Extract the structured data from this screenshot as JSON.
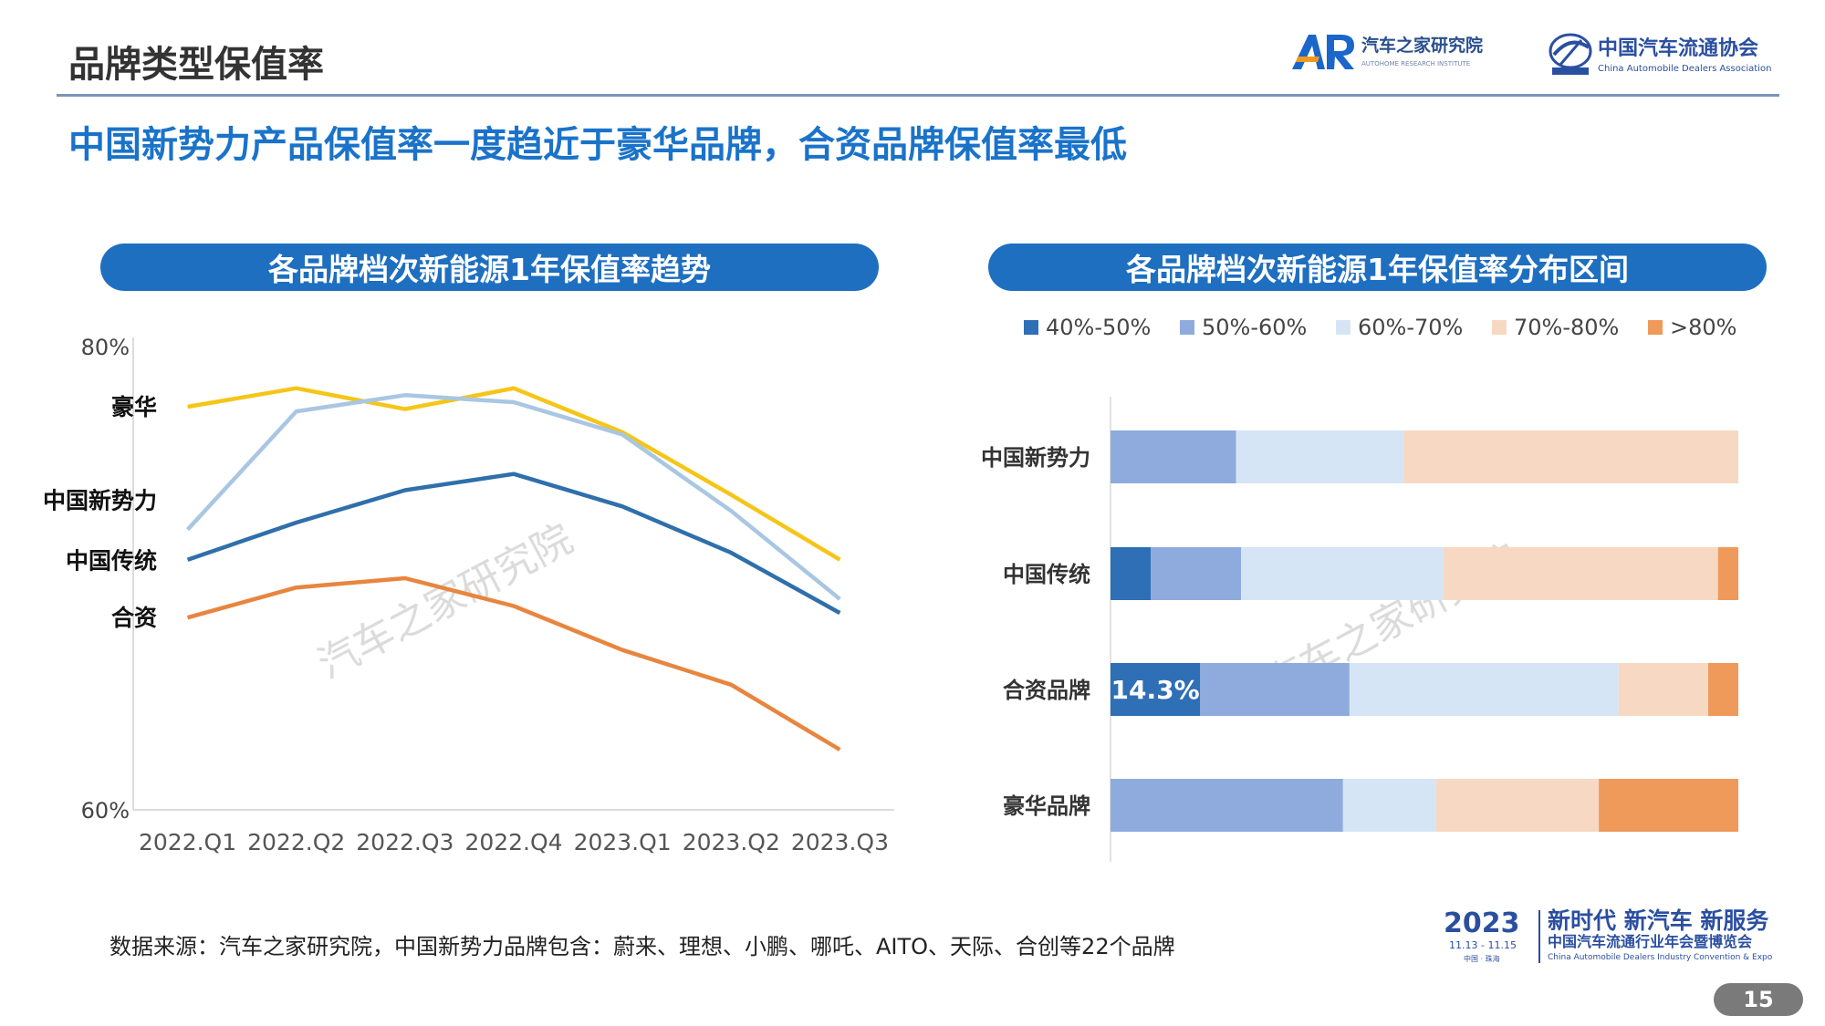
{
  "header": {
    "title": "品牌类型保值率",
    "autohome_logo_text": "汽车之家研究院",
    "autohome_logo_sub": "AUTOHOME RESEARCH INSTITUTE",
    "cada_logo_text": "中国汽车流通协会",
    "cada_logo_sub": "China Automobile Dealers Association"
  },
  "headline": "中国新势力产品保值率一度趋近于豪华品牌，合资品牌保值率最低",
  "left_panel_title": "各品牌档次新能源1年保值率趋势",
  "right_panel_title": "各品牌档次新能源1年保值率分布区间",
  "watermark": "汽车之家研究院",
  "source_note": "数据来源：汽车之家研究院，中国新势力品牌包含：蔚来、理想、小鹏、哪吒、AITO、天际、合创等22个品牌",
  "footer": {
    "event_year": "2023",
    "event_dates": "11.13 - 11.15",
    "event_place": "中国 · 珠海",
    "event_slogan": "新时代 新汽车 新服务",
    "event_name": "中国汽车流通行业年会暨博览会",
    "event_name_en": "China Automobile Dealers Industry Convention & Expo",
    "page_number": "15"
  },
  "colors": {
    "luxury": "#f5c518",
    "new_force": "#a9c6e2",
    "traditional": "#2f6fab",
    "jv": "#e8853f",
    "b40_50": "#2e6fb6",
    "b50_60": "#8fabdd",
    "b60_70": "#d6e5f5",
    "b70_80": "#f7d9c3",
    "b80": "#ef9a5a",
    "accent": "#1f6fc0"
  },
  "chart_data": [
    {
      "type": "line",
      "x": [
        "2022.Q1",
        "2022.Q2",
        "2022.Q3",
        "2022.Q4",
        "2023.Q1",
        "2023.Q2",
        "2023.Q3"
      ],
      "ylim": [
        60,
        80
      ],
      "y_tick_labels": [
        "60%",
        "80%"
      ],
      "series_labels": [
        "豪华",
        "中国新势力",
        "中国传统",
        "合资"
      ],
      "series": [
        {
          "name": "豪华",
          "color_key": "luxury",
          "values": [
            77.4,
            78.2,
            77.3,
            78.2,
            76.3,
            73.6,
            70.8
          ]
        },
        {
          "name": "中国新势力",
          "color_key": "new_force",
          "values": [
            72.1,
            77.2,
            77.9,
            77.6,
            76.2,
            72.9,
            69.1
          ]
        },
        {
          "name": "中国传统",
          "color_key": "traditional",
          "values": [
            70.8,
            72.4,
            73.8,
            74.5,
            73.1,
            71.1,
            68.5
          ]
        },
        {
          "name": "合资",
          "color_key": "jv",
          "values": [
            68.3,
            69.6,
            70.0,
            68.8,
            66.9,
            65.4,
            62.6
          ]
        }
      ]
    },
    {
      "type": "bar",
      "orientation": "horizontal",
      "stacked": true,
      "legend_position": "top",
      "categories": [
        "中国新势力",
        "中国传统",
        "合资品牌",
        "豪华品牌"
      ],
      "series": [
        {
          "name": "40%-50%",
          "color_key": "b40_50",
          "values": [
            0,
            6.3,
            14.3,
            0
          ]
        },
        {
          "name": "50%-60%",
          "color_key": "b50_60",
          "values": [
            20,
            14.2,
            23.8,
            37
          ]
        },
        {
          "name": "60%-70%",
          "color_key": "b60_70",
          "values": [
            26.7,
            31.8,
            42.9,
            14.8
          ]
        },
        {
          "name": "70%-80%",
          "color_key": "b70_80",
          "values": [
            53.3,
            43.1,
            14.3,
            25.9
          ]
        },
        {
          "name": ">80%",
          "color_key": "b80",
          "values": [
            0,
            3.2,
            4.8,
            22.2
          ]
        }
      ],
      "data_labels": [
        {
          "category": "合资品牌",
          "series": "40%-50%",
          "text": "14.3%"
        }
      ]
    }
  ]
}
